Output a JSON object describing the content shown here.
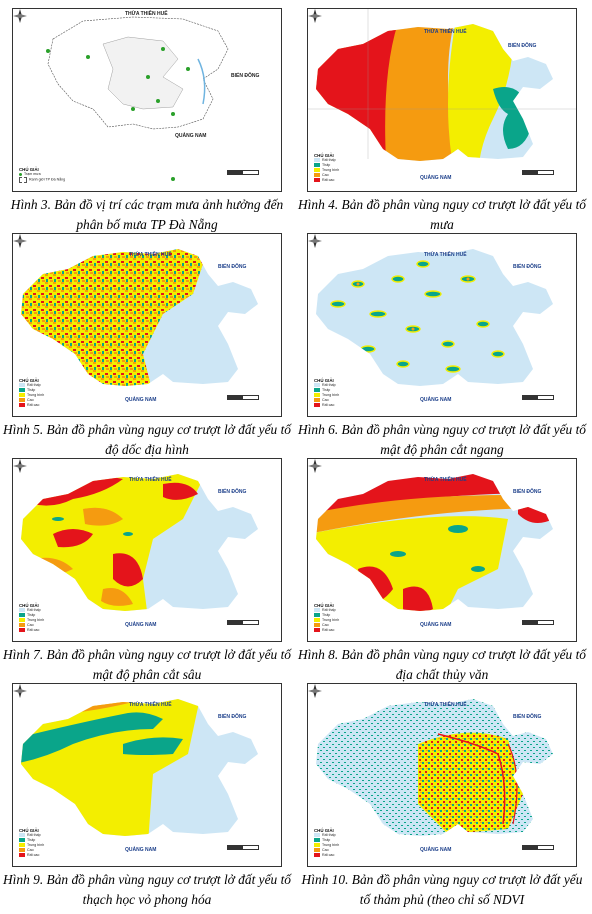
{
  "figures": [
    {
      "id": "f3",
      "caption": "Hình 3. Bản đồ vị trí các trạm mưa ảnh hưởng đến phân bố mưa TP Đà Nẵng",
      "labels": {
        "top": "THỪA THIÊN HUẾ",
        "east": "BIỂN ĐÔNG",
        "south": "QUẢNG NAM"
      },
      "legend_title": "CHÚ GIẢI",
      "legend": [
        "Trạm mưa",
        "Ranh giới TP Đà Nẵng"
      ]
    },
    {
      "id": "f4",
      "caption": "Hình 4. Bản đồ phân vùng nguy cơ trượt lở đất yếu tố mưa",
      "labels": {
        "top": "THỪA THIÊN HUẾ",
        "east": "BIỂN ĐÔNG",
        "south": "QUẢNG NAM"
      },
      "legend_title": "CHÚ GIẢI",
      "legend": [
        "Rất thấp",
        "Thấp",
        "Trung bình",
        "Cao",
        "Rất cao"
      ]
    },
    {
      "id": "f5",
      "caption": "Hình 5. Bản đồ phân vùng nguy cơ trượt lở đất yếu tố độ dốc địa hình",
      "labels": {
        "top": "THỪA THIÊN HUẾ",
        "east": "BIỂN ĐÔNG",
        "south": "QUẢNG NAM"
      },
      "legend_title": "CHÚ GIẢI",
      "legend": [
        "Rất thấp",
        "Thấp",
        "Trung bình",
        "Cao",
        "Rất cao"
      ]
    },
    {
      "id": "f6",
      "caption": "Hình 6. Bản đồ phân vùng nguy cơ trượt lở đất yếu tố mật độ phân cắt ngang",
      "labels": {
        "top": "THỪA THIÊN HUẾ",
        "east": "BIỂN ĐÔNG",
        "south": "QUẢNG NAM"
      },
      "legend_title": "CHÚ GIẢI",
      "legend": [
        "Rất thấp",
        "Thấp",
        "Trung bình",
        "Cao",
        "Rất cao"
      ]
    },
    {
      "id": "f7",
      "caption": "Hình 7. Bản đồ phân vùng nguy cơ trượt lở đất yếu tố mật độ phân cắt sâu",
      "labels": {
        "top": "THỪA THIÊN HUẾ",
        "east": "BIỂN ĐÔNG",
        "south": "QUẢNG NAM"
      },
      "legend_title": "CHÚ GIẢI",
      "legend": [
        "Rất thấp",
        "Thấp",
        "Trung bình",
        "Cao",
        "Rất cao"
      ]
    },
    {
      "id": "f8",
      "caption": "Hình 8. Bản đồ phân vùng nguy cơ trượt lở đất yếu tố địa chất thủy văn",
      "labels": {
        "top": "THỪA THIÊN HUẾ",
        "east": "BIỂN ĐÔNG",
        "south": "QUẢNG NAM"
      },
      "legend_title": "CHÚ GIẢI",
      "legend": [
        "Rất thấp",
        "Thấp",
        "Trung bình",
        "Cao",
        "Rất cao"
      ]
    },
    {
      "id": "f9",
      "caption": "Hình 9. Bản đồ phân vùng nguy cơ trượt lở đất yếu tố thạch học vỏ phong hóa",
      "labels": {
        "top": "THỪA THIÊN HUẾ",
        "east": "BIỂN ĐÔNG",
        "south": "QUẢNG NAM"
      },
      "legend_title": "CHÚ GIẢI",
      "legend": [
        "Rất thấp",
        "Thấp",
        "Trung bình",
        "Cao",
        "Rất cao"
      ]
    },
    {
      "id": "f10",
      "caption": "Hình 10. Bản đồ phân vùng nguy cơ trượt lở đất yếu tố thảm phủ (theo chỉ số NDVI",
      "labels": {
        "top": "THỪA THIÊN HUẾ",
        "east": "BIỂN ĐÔNG",
        "south": "QUẢNG NAM"
      },
      "legend_title": "CHÚ GIẢI",
      "legend": [
        "Rất thấp",
        "Thấp",
        "Trung bình",
        "Cao",
        "Rất cao"
      ]
    }
  ],
  "colors": {
    "very_low": "#cde6f5",
    "low": "#0aa58a",
    "medium": "#f3ee00",
    "high": "#f59b10",
    "very_high": "#e4141b"
  }
}
